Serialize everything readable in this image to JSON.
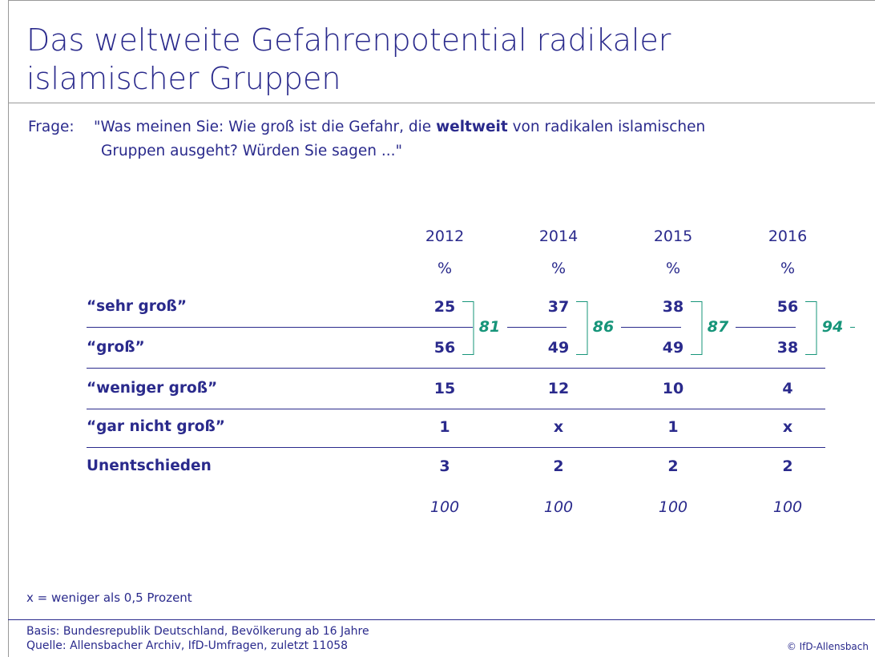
{
  "title": {
    "lines": [
      "Das weltweite Gefahrenpotential radikaler",
      "islamischer Gruppen"
    ]
  },
  "question": {
    "label": "Frage:",
    "line1_pre": "\"Was meinen Sie: Wie groß ist die Gefahr, die ",
    "line1_bold": "weltweit",
    "line1_post": " von radikalen islamischen",
    "line2": "Gruppen ausgeht? Würden Sie sagen ...\""
  },
  "table": {
    "years": [
      "2012",
      "2014",
      "2015",
      "2016"
    ],
    "units": [
      "%",
      "%",
      "%",
      "%"
    ],
    "rows": [
      {
        "label": "“sehr groß”",
        "values": [
          25,
          37,
          38,
          56
        ]
      },
      {
        "label": "“groß”",
        "values": [
          56,
          49,
          49,
          38
        ]
      },
      {
        "label": "“weniger groß”",
        "values": [
          15,
          12,
          10,
          4
        ]
      },
      {
        "label": "“gar nicht groß”",
        "values": [
          1,
          "x",
          1,
          "x"
        ]
      },
      {
        "label": "Unentschieden",
        "values": [
          3,
          2,
          2,
          2
        ]
      }
    ],
    "combined": [
      81,
      86,
      87,
      94
    ],
    "totals": [
      100,
      100,
      100,
      100
    ]
  },
  "footnote": "x = weniger als 0,5 Prozent",
  "basis": "Basis: Bundesrepublik Deutschland, Bevölkerung ab 16 Jahre",
  "source": "Quelle: Allensbacher Archiv, IfD-Umfragen, zuletzt 11058",
  "copyright": "© IfD-Allensbach"
}
